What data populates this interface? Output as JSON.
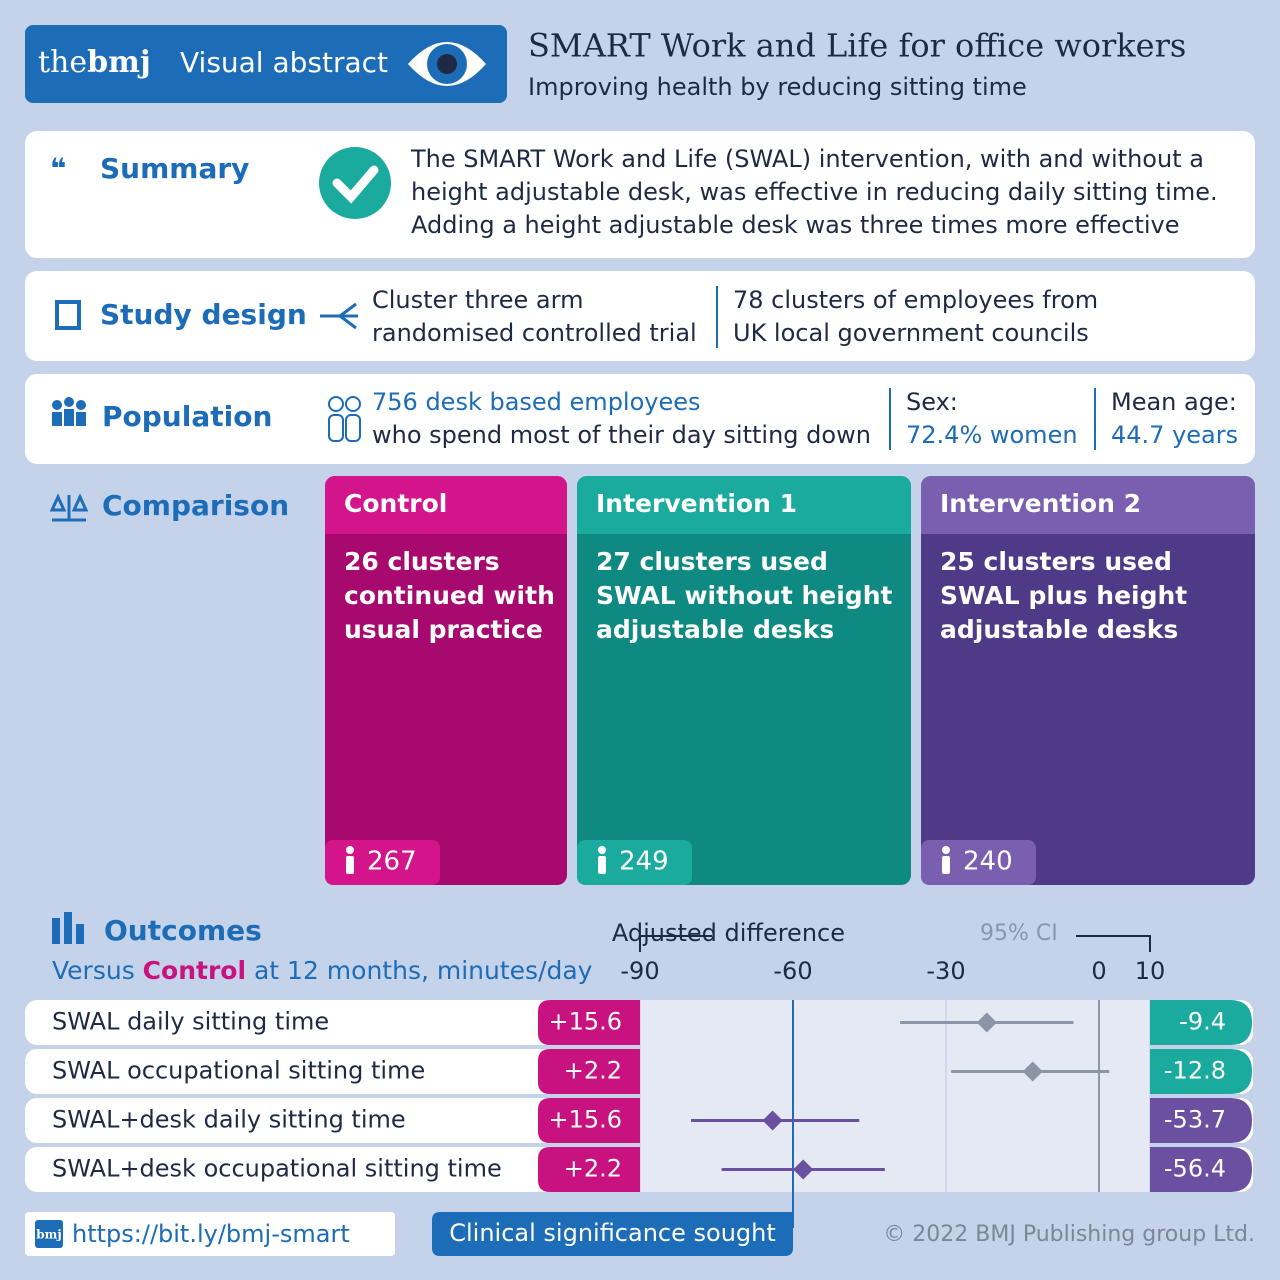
{
  "header": {
    "brand_the": "the",
    "brand_bmj": "bmj",
    "label": "Visual abstract",
    "title": "SMART Work and Life for office workers",
    "subtitle": "Improving health by reducing sitting time"
  },
  "summary": {
    "heading": "Summary",
    "lines": [
      "The SMART Work and Life (SWAL) intervention, with and without a",
      "height adjustable desk, was effective in reducing daily sitting time.",
      "Adding a height adjustable desk was three times more effective"
    ]
  },
  "study_design": {
    "heading": "Study design",
    "design": [
      "Cluster three arm",
      "randomised controlled trial"
    ],
    "clusters": [
      "78 clusters of employees from",
      "UK local government councils"
    ]
  },
  "population": {
    "heading": "Population",
    "count": "756 desk based employees",
    "description": "who spend most of their day sitting down",
    "sex_label": "Sex:",
    "sex_value": "72.4% women",
    "age_label": "Mean age:",
    "age_value": "44.7 years"
  },
  "comparison": {
    "heading": "Comparison",
    "arms": [
      {
        "name": "Control",
        "lines": [
          "26 clusters",
          "continued with",
          "usual practice"
        ],
        "n": 267,
        "color": "#a8096e",
        "accent": "#d3148a"
      },
      {
        "name": "Intervention 1",
        "lines": [
          "27 clusters used",
          "SWAL without height",
          "adjustable desks"
        ],
        "n": 249,
        "color": "#0e8a82",
        "accent": "#1aaa9e"
      },
      {
        "name": "Intervention 2",
        "lines": [
          "25 clusters used",
          "SWAL plus height",
          "adjustable desks"
        ],
        "n": 240,
        "color": "#4e3a86",
        "accent": "#7a5fb0"
      }
    ]
  },
  "outcomes": {
    "heading": "Outcomes",
    "subtitle_pre": "Versus",
    "subtitle_em": "Control",
    "subtitle_post": "at 12 months, minutes/day"
  },
  "footer": {
    "link_icon": "bmj",
    "link": "https://bit.ly/bmj-smart",
    "copyright": "© 2022 BMJ Publishing group Ltd."
  },
  "chart_data": {
    "type": "forest",
    "axis_label": "Adjusted difference",
    "ci_label": "95% CI",
    "xlim": [
      -90,
      10
    ],
    "xticks": [
      -90,
      -60,
      -30,
      0,
      10
    ],
    "reference_line": -60,
    "reference_label": "Clinical significance sought",
    "categories": [
      "SWAL daily sitting time",
      "SWAL occupational sitting time",
      "SWAL+desk daily sitting time",
      "SWAL+desk occupational sitting time"
    ],
    "values": [
      -22,
      -13,
      -64,
      -58
    ],
    "ci_low": [
      -39,
      -29,
      -80,
      -74
    ],
    "ci_high": [
      -5,
      2,
      -47,
      -42
    ],
    "colors": [
      "#8a96a8",
      "#8a96a8",
      "#6b4fa0",
      "#6b4fa0"
    ],
    "left_labels": [
      "+15.6",
      "+2.2",
      "+15.6",
      "+2.2"
    ],
    "left_label_color": "#c8127f",
    "right_labels": [
      "-9.4",
      "-12.8",
      "-53.7",
      "-56.4"
    ],
    "right_label_colors": [
      "#1aaa9e",
      "#1aaa9e",
      "#6b4fa0",
      "#6b4fa0"
    ]
  }
}
